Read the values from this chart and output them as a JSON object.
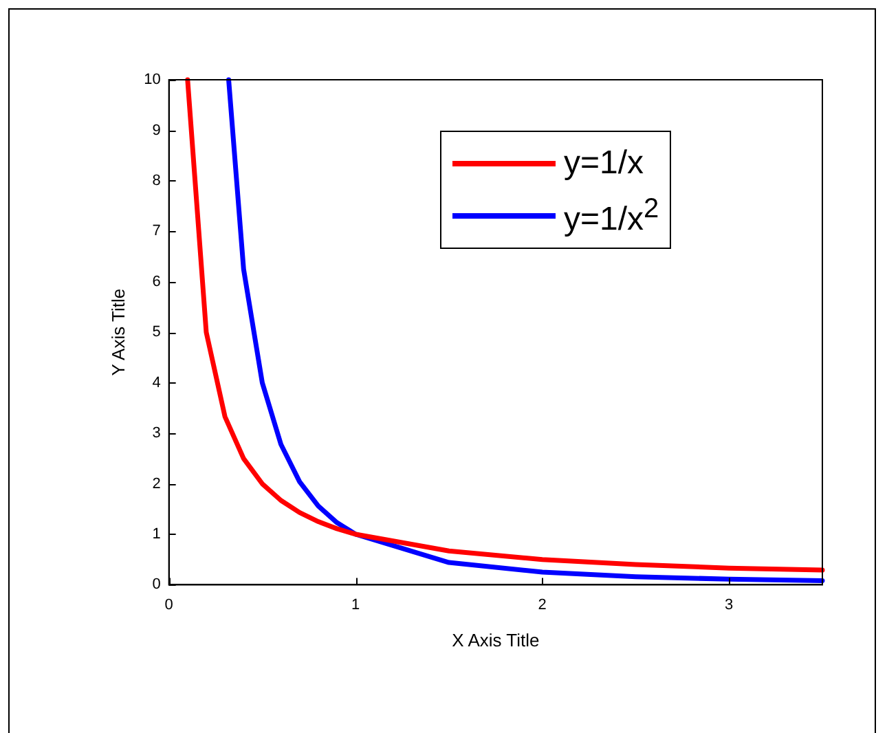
{
  "chart_data": {
    "type": "line",
    "xlabel": "X Axis Title",
    "ylabel": "Y Axis Title",
    "xlim": [
      0,
      3.5
    ],
    "xticks": [
      0,
      1,
      2,
      3
    ],
    "ylim": [
      0,
      10
    ],
    "yticks": [
      0,
      1,
      2,
      3,
      4,
      5,
      6,
      7,
      8,
      9,
      10
    ],
    "grid": false,
    "legend": "top right",
    "marker": "none",
    "line_style": "solid",
    "series": [
      {
        "name": "y=1/x",
        "color": "#ff0000",
        "x": [
          0.1,
          0.2,
          0.3,
          0.4,
          0.5,
          0.6,
          0.7,
          0.8,
          0.9,
          1,
          1.5,
          2,
          2.5,
          3,
          3.5
        ],
        "values": [
          10,
          5,
          3.33,
          2.5,
          2,
          1.67,
          1.43,
          1.25,
          1.11,
          1,
          0.67,
          0.5,
          0.4,
          0.33,
          0.29
        ]
      },
      {
        "name": "y=1/x$^{2}$",
        "color": "#0000ff",
        "x": [
          0.32,
          0.4,
          0.5,
          0.6,
          0.7,
          0.8,
          0.9,
          1,
          1.5,
          2,
          2.5,
          3,
          3.5
        ],
        "values": [
          10,
          6.25,
          4,
          2.78,
          2.04,
          1.56,
          1.23,
          1,
          0.44,
          0.25,
          0.16,
          0.11,
          0.08
        ]
      }
    ]
  }
}
